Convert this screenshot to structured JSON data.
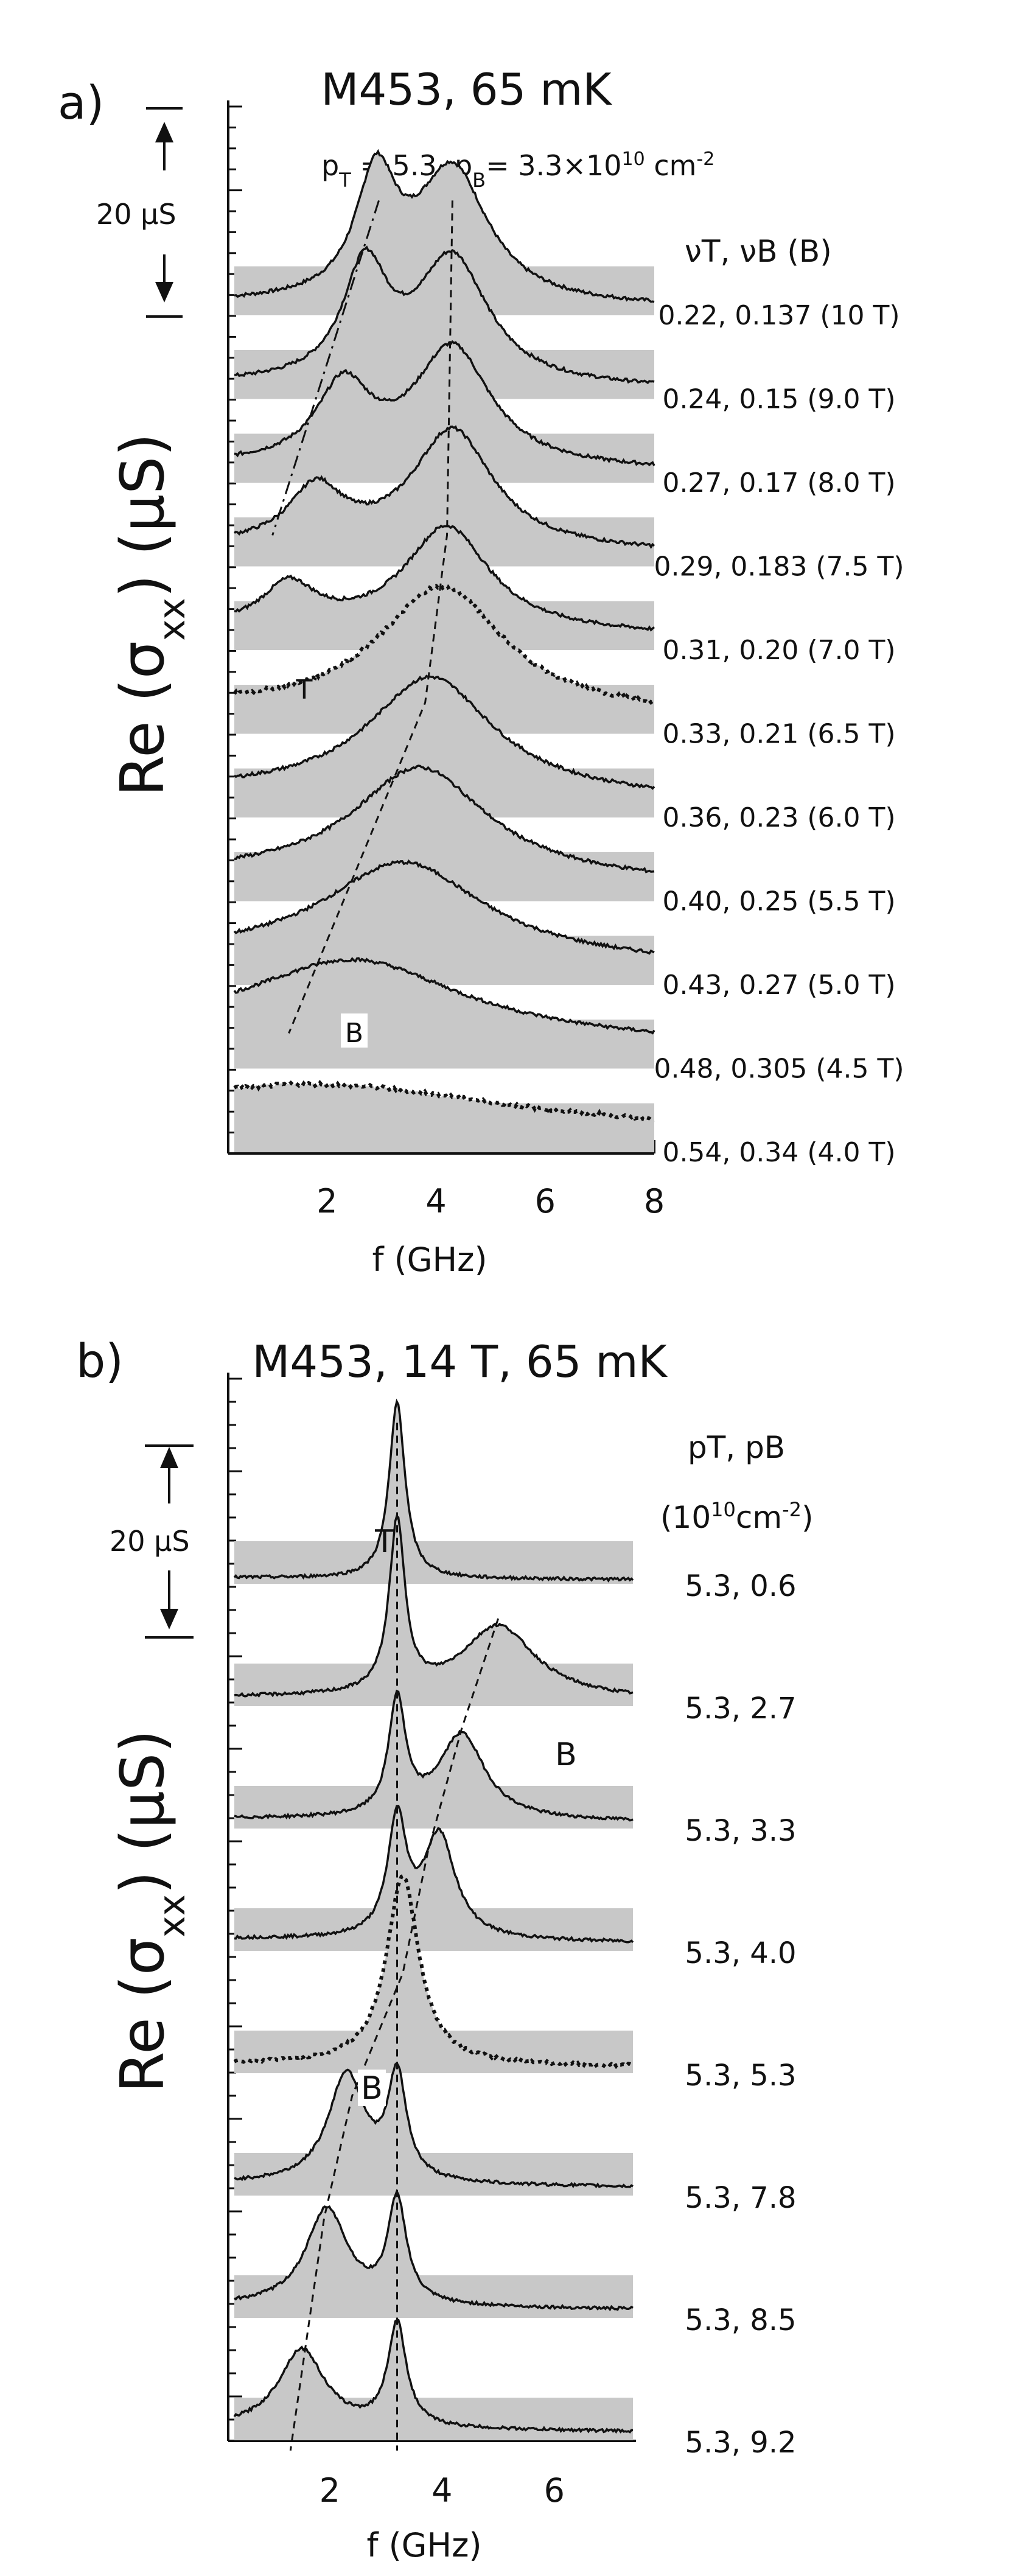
{
  "chart_data": [
    {
      "type": "line",
      "panel_label": "a)",
      "title": "M453, 65 mK",
      "density_label": {
        "pT": "5.3",
        "pB": "3.3",
        "unit": "cm",
        "exp": "-2",
        "mult": "×10",
        "mult_exp": "10"
      },
      "scale_bar_label": "20 μS",
      "xlabel": "f (GHz)",
      "ylabel": "Re (σxx) (μS)",
      "xlim": [
        0.3,
        8.0
      ],
      "xticks": [
        2,
        4,
        6,
        8
      ],
      "trace_header": "νT, νB (B)",
      "peak_labels": {
        "top": "T",
        "bottom": "B"
      },
      "series": [
        {
          "name": "0.22, 0.137 (10 T)",
          "style": "solid",
          "peaks": [
            [
              2.9,
              0.85,
              0.45
            ],
            [
              4.3,
              0.95,
              0.8
            ]
          ],
          "base": 0.08
        },
        {
          "name": "0.24, 0.15 (9.0 T)",
          "style": "solid",
          "peaks": [
            [
              2.7,
              0.8,
              0.5
            ],
            [
              4.3,
              0.9,
              0.8
            ]
          ],
          "base": 0.1
        },
        {
          "name": "0.27, 0.17 (8.0 T)",
          "style": "solid",
          "peaks": [
            [
              2.3,
              0.55,
              0.6
            ],
            [
              4.3,
              0.85,
              0.85
            ]
          ],
          "base": 0.12
        },
        {
          "name": "0.29, 0.183 (7.5 T)",
          "style": "solid",
          "peaks": [
            [
              1.8,
              0.4,
              0.6
            ],
            [
              4.3,
              0.85,
              0.9
            ]
          ],
          "base": 0.14
        },
        {
          "name": "0.31, 0.20 (7.0 T)",
          "style": "solid",
          "peaks": [
            [
              1.3,
              0.3,
              0.6
            ],
            [
              4.2,
              0.75,
              0.95
            ]
          ],
          "base": 0.15
        },
        {
          "name": "0.33, 0.21 (6.5 T)",
          "style": "dotted",
          "peaks": [
            [
              4.1,
              0.9,
              1.4
            ]
          ],
          "base": 0.18
        },
        {
          "name": "0.36, 0.23 (6.0 T)",
          "style": "solid",
          "peaks": [
            [
              3.9,
              0.85,
              1.4
            ]
          ],
          "base": 0.18
        },
        {
          "name": "0.40, 0.25 (5.5 T)",
          "style": "solid",
          "peaks": [
            [
              3.7,
              0.8,
              1.5
            ]
          ],
          "base": 0.18
        },
        {
          "name": "0.43, 0.27 (5.0 T)",
          "style": "solid",
          "peaks": [
            [
              3.4,
              0.7,
              1.8
            ]
          ],
          "base": 0.2
        },
        {
          "name": "0.48, 0.305 (4.5 T)",
          "style": "solid",
          "peaks": [
            [
              2.5,
              0.55,
              2.4
            ]
          ],
          "base": 0.25
        },
        {
          "name": "0.54, 0.34 (4.0 T)",
          "style": "dotted",
          "peaks": [
            [
              2.0,
              0.28,
              4.0
            ]
          ],
          "base": 0.22
        }
      ],
      "guide_lines": [
        {
          "style": "dash-dot",
          "points": [
            [
              2.95,
              0
            ],
            [
              1.0,
              4
            ]
          ]
        },
        {
          "style": "dashed",
          "points": [
            [
              4.3,
              0
            ],
            [
              4.2,
              4
            ],
            [
              3.8,
              6
            ],
            [
              1.3,
              9.95
            ]
          ]
        }
      ]
    },
    {
      "type": "line",
      "panel_label": "b)",
      "title": "M453, 14 T, 65 mK",
      "scale_bar_label": "20 μS",
      "xlabel": "f (GHz)",
      "ylabel": "Re (σxx) (μS)",
      "xlim": [
        0.3,
        7.4
      ],
      "xticks": [
        2,
        4,
        6
      ],
      "trace_header": {
        "line1": "pT, pB",
        "line2_base": "10",
        "line2_exp": "10",
        "line2_unit": "cm",
        "line2_unit_exp": "-2"
      },
      "peak_labels": {
        "top": "T",
        "bottom": "B"
      },
      "series": [
        {
          "name": "5.3, 0.6",
          "style": "solid",
          "peaks": [
            [
              3.2,
              1.45,
              0.17
            ]
          ],
          "base": 0.05
        },
        {
          "name": "5.3, 2.7",
          "style": "solid",
          "peaks": [
            [
              3.2,
              1.4,
              0.17
            ],
            [
              5.0,
              0.6,
              0.8
            ]
          ],
          "base": 0.07
        },
        {
          "name": "5.3, 3.3",
          "style": "solid",
          "peaks": [
            [
              3.2,
              0.95,
              0.18
            ],
            [
              4.35,
              0.7,
              0.5
            ]
          ],
          "base": 0.08
        },
        {
          "name": "5.3, 4.0",
          "style": "solid",
          "peaks": [
            [
              3.2,
              0.95,
              0.2
            ],
            [
              3.95,
              0.85,
              0.35
            ]
          ],
          "base": 0.1
        },
        {
          "name": "5.3, 5.3",
          "style": "dotted",
          "peaks": [
            [
              3.3,
              1.55,
              0.35
            ]
          ],
          "base": 0.08
        },
        {
          "name": "5.3, 7.8",
          "style": "solid",
          "peaks": [
            [
              2.3,
              0.9,
              0.4
            ],
            [
              3.2,
              0.85,
              0.2
            ]
          ],
          "base": 0.1
        },
        {
          "name": "5.3, 8.5",
          "style": "solid",
          "peaks": [
            [
              1.95,
              0.8,
              0.45
            ],
            [
              3.2,
              0.85,
              0.2
            ]
          ],
          "base": 0.1
        },
        {
          "name": "5.3, 9.2",
          "style": "solid",
          "peaks": [
            [
              1.5,
              0.65,
              0.5
            ],
            [
              3.2,
              0.85,
              0.2
            ]
          ],
          "base": 0.1
        }
      ],
      "guide_lines": [
        {
          "style": "dashed",
          "points": [
            [
              3.2,
              -0.5
            ],
            [
              3.2,
              7.9
            ]
          ]
        },
        {
          "style": "dashed",
          "points": [
            [
              5.0,
              1.1
            ],
            [
              4.35,
              2.0
            ],
            [
              3.75,
              3.0
            ],
            [
              3.3,
              4.0
            ],
            [
              2.4,
              5.0
            ],
            [
              1.9,
              6.0
            ],
            [
              1.3,
              7.9
            ]
          ]
        }
      ]
    }
  ]
}
